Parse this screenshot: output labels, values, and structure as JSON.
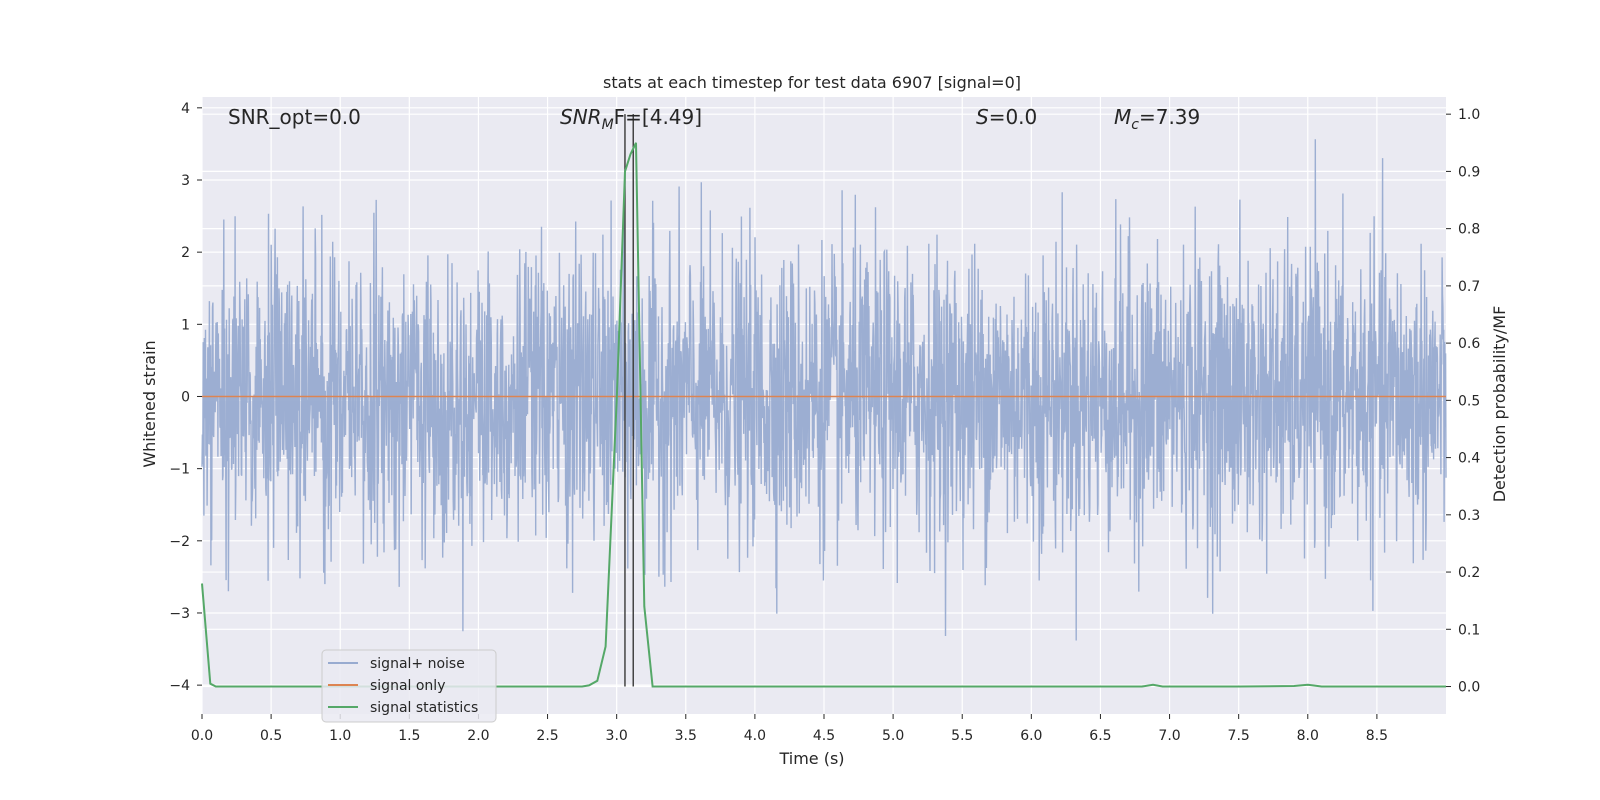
{
  "chart_data": {
    "type": "line",
    "title": "stats at each timestep for test data 6907 [signal=0]",
    "xlabel": "Time (s)",
    "ylabel": "Whitened strain",
    "y2label": "Detection probability/MF",
    "xlim": [
      0,
      9.0
    ],
    "ylim": [
      -4.4,
      4.15
    ],
    "y2lim": [
      -0.048,
      1.03
    ],
    "xticks": [
      "0.0",
      "0.5",
      "1.0",
      "1.5",
      "2.0",
      "2.5",
      "3.0",
      "3.5",
      "4.0",
      "4.5",
      "5.0",
      "5.5",
      "6.0",
      "6.5",
      "7.0",
      "7.5",
      "8.0",
      "8.5"
    ],
    "yticks": [
      "4",
      "3",
      "2",
      "1",
      "0",
      "−1",
      "−2",
      "−3",
      "−4"
    ],
    "y2ticks": [
      "1.0",
      "0.9",
      "0.8",
      "0.7",
      "0.6",
      "0.5",
      "0.4",
      "0.3",
      "0.2",
      "0.1",
      "0.0"
    ],
    "grid": true,
    "legend_position": "lower-left",
    "annotations": {
      "snr_opt": "SNR_opt=0.0",
      "snr_mf_main": "SNR",
      "snr_mf_sub": "M",
      "snr_mf_rest": "F=[4.49]",
      "s_main": "S",
      "s_rest": "=0.0",
      "mc_main": "M",
      "mc_sub": "c",
      "mc_rest": "=7.39"
    },
    "vlines": [
      3.06,
      3.12
    ],
    "series": [
      {
        "name": "signal+ noise",
        "color": "#98abd0",
        "description_values": "whitened noise trace, roughly within [-3.6, 3.8]",
        "envelope_upper_peak": 3.8,
        "envelope_lower_peak": -3.6,
        "noise_sigma": 1.0
      },
      {
        "name": "signal only",
        "color": "#dd8452",
        "x": [
          0,
          9.0
        ],
        "y": [
          0,
          0
        ]
      },
      {
        "name": "signal statistics",
        "color": "#55a868",
        "axis": "right",
        "x": [
          0.0,
          0.06,
          0.1,
          0.2,
          0.5,
          1.0,
          1.5,
          2.0,
          2.5,
          2.75,
          2.8,
          2.86,
          2.92,
          3.0,
          3.06,
          3.1,
          3.14,
          3.2,
          3.26,
          3.4,
          4.0,
          5.0,
          6.0,
          6.8,
          6.88,
          6.95,
          7.5,
          7.9,
          8.0,
          8.1,
          8.5,
          9.0
        ],
        "y": [
          0.18,
          0.005,
          0.0,
          0.0,
          0.0,
          0.0,
          0.0,
          0.0,
          0.0,
          0.0,
          0.002,
          0.01,
          0.07,
          0.5,
          0.9,
          0.93,
          0.95,
          0.14,
          0.0,
          0.0,
          0.0,
          0.0,
          0.0,
          0.0,
          0.003,
          0.0,
          0.0,
          0.001,
          0.003,
          0.0,
          0.0,
          0.0
        ]
      }
    ]
  }
}
